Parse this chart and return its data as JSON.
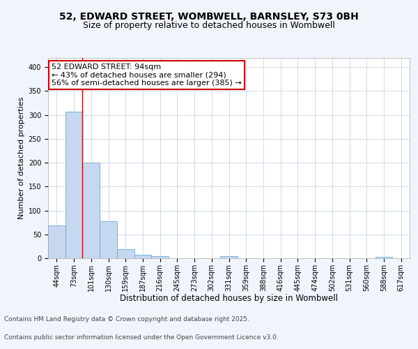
{
  "title1": "52, EDWARD STREET, WOMBWELL, BARNSLEY, S73 0BH",
  "title2": "Size of property relative to detached houses in Wombwell",
  "xlabel": "Distribution of detached houses by size in Wombwell",
  "ylabel": "Number of detached properties",
  "categories": [
    "44sqm",
    "73sqm",
    "101sqm",
    "130sqm",
    "159sqm",
    "187sqm",
    "216sqm",
    "245sqm",
    "273sqm",
    "302sqm",
    "331sqm",
    "359sqm",
    "388sqm",
    "416sqm",
    "445sqm",
    "474sqm",
    "502sqm",
    "531sqm",
    "560sqm",
    "588sqm",
    "617sqm"
  ],
  "values": [
    68,
    307,
    200,
    78,
    19,
    8,
    4,
    0,
    0,
    0,
    4,
    0,
    0,
    0,
    0,
    0,
    0,
    0,
    0,
    3,
    0
  ],
  "bar_color": "#c5d8f0",
  "bar_edge_color": "#6aaad4",
  "vline_color": "#cc0000",
  "vline_x_index": 2,
  "annotation_line1": "52 EDWARD STREET: 94sqm",
  "annotation_line2": "← 43% of detached houses are smaller (294)",
  "annotation_line3": "56% of semi-detached houses are larger (385) →",
  "annotation_box_color": "#cc0000",
  "ylim": [
    0,
    420
  ],
  "yticks": [
    0,
    50,
    100,
    150,
    200,
    250,
    300,
    350,
    400
  ],
  "footer1": "Contains HM Land Registry data © Crown copyright and database right 2025.",
  "footer2": "Contains public sector information licensed under the Open Government Licence v3.0.",
  "background_color": "#f0f4fb",
  "plot_background": "#ffffff",
  "grid_color": "#c8d4e8",
  "title1_fontsize": 10,
  "title2_fontsize": 9,
  "xlabel_fontsize": 8.5,
  "ylabel_fontsize": 8,
  "tick_fontsize": 7,
  "annotation_fontsize": 8,
  "footer_fontsize": 6.5
}
